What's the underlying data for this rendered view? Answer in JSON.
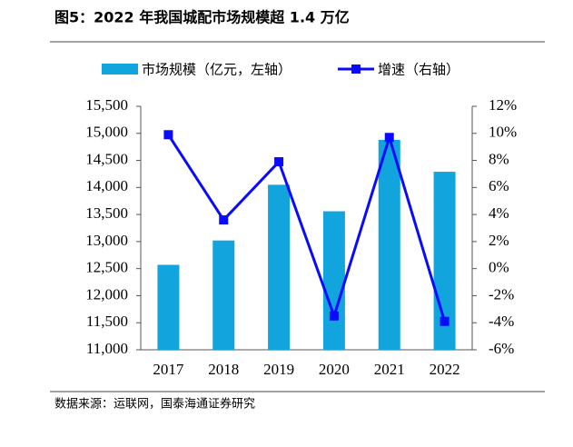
{
  "chart_data": {
    "type": "bar",
    "title": "图5：2022 年我国城配市场规模超 1.4 万亿",
    "source": "数据来源：运联网，国泰海通证券研究",
    "categories": [
      "2017",
      "2018",
      "2019",
      "2020",
      "2021",
      "2022"
    ],
    "series": [
      {
        "name": "市场规模（亿元，左轴）",
        "type": "bar",
        "color": "#12a4dc",
        "values": [
          12570,
          13020,
          14050,
          13560,
          14880,
          14290
        ]
      },
      {
        "name": "增速（右轴）",
        "type": "line",
        "axis": "y2",
        "color": "#0a0aff",
        "values": [
          9.9,
          3.6,
          7.9,
          -3.5,
          9.7,
          -3.9
        ]
      }
    ],
    "ylim": [
      11000,
      15500
    ],
    "yticks": [
      {
        "value": 11000,
        "label": "11,000"
      },
      {
        "value": 11500,
        "label": "11,500"
      },
      {
        "value": 12000,
        "label": "12,000"
      },
      {
        "value": 12500,
        "label": "12,500"
      },
      {
        "value": 13000,
        "label": "13,000"
      },
      {
        "value": 13500,
        "label": "13,500"
      },
      {
        "value": 14000,
        "label": "14,000"
      },
      {
        "value": 14500,
        "label": "14,500"
      },
      {
        "value": 15000,
        "label": "15,000"
      },
      {
        "value": 15500,
        "label": "15,500"
      }
    ],
    "y2lim": [
      -6,
      12
    ],
    "y2ticks": [
      {
        "value": -6,
        "label": "-6%"
      },
      {
        "value": -4,
        "label": "-4%"
      },
      {
        "value": -2,
        "label": "-2%"
      },
      {
        "value": 0,
        "label": "0%"
      },
      {
        "value": 2,
        "label": "2%"
      },
      {
        "value": 4,
        "label": "4%"
      },
      {
        "value": 6,
        "label": "6%"
      },
      {
        "value": 8,
        "label": "8%"
      },
      {
        "value": 10,
        "label": "10%"
      },
      {
        "value": 12,
        "label": "12%"
      }
    ]
  }
}
